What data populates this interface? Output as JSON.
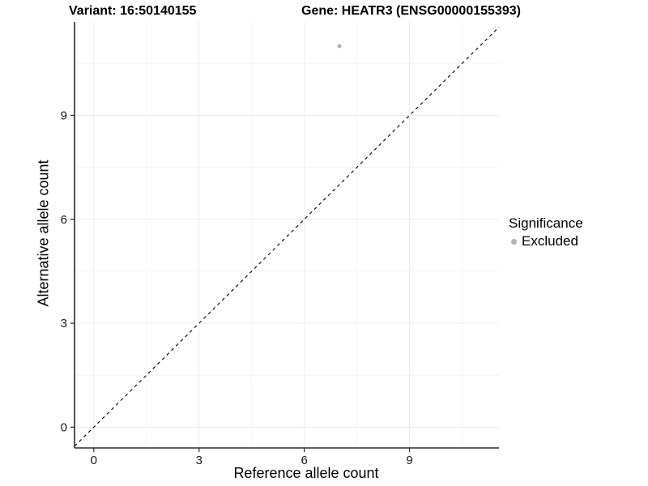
{
  "header": {
    "variant_title": "Variant: 16:50140155",
    "gene_title": "Gene: HEATR3 (ENSG00000155393)"
  },
  "legend": {
    "title": "Significance",
    "items": [
      {
        "label": "Excluded",
        "color": "#b3b3b3"
      }
    ]
  },
  "chart_data": {
    "type": "scatter",
    "xlabel": "Reference allele count",
    "ylabel": "Alternative allele count",
    "xlim": [
      -0.55,
      11.55
    ],
    "ylim": [
      -0.6,
      11.7
    ],
    "x_ticks": [
      0,
      3,
      6,
      9
    ],
    "y_ticks": [
      0,
      3,
      6,
      9
    ],
    "x_minor_gridlines": [
      1.5,
      4.5,
      7.5,
      10.5
    ],
    "y_minor_gridlines": [
      1.5,
      4.5,
      7.5,
      10.5
    ],
    "grid": "on",
    "legend_position": "right",
    "points": [
      {
        "x": 7,
        "y": 11,
        "series": "Excluded"
      }
    ],
    "identity_line": {
      "style": "dashed",
      "from": [
        -0.55,
        -0.55
      ],
      "to": [
        11.55,
        11.55
      ]
    },
    "colors": {
      "point": "#b3b3b3",
      "grid_major": "#ececec",
      "grid_minor": "#f4f4f4",
      "axis_line": "#2b2b2b",
      "identity_line": "#000000",
      "tick_label": "#1a1a1a"
    }
  }
}
